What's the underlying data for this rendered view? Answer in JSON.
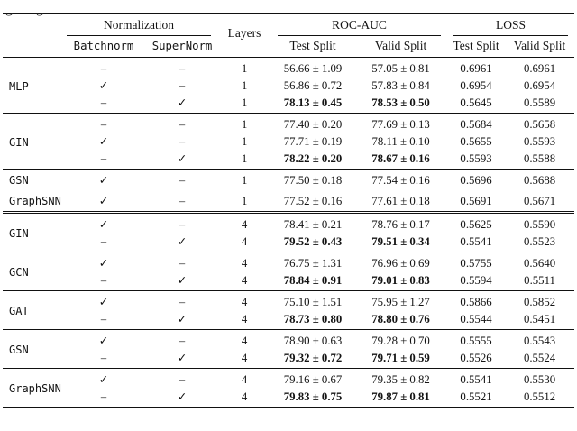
{
  "caption_fragment": "g g",
  "header": {
    "normalization": "Normalization",
    "layers": "Layers",
    "roc_auc": "ROC-AUC",
    "loss": "LOSS",
    "sub": {
      "batchnorm": "Batchnorm",
      "supernorm": "SuperNorm",
      "roc_test": "Test Split",
      "roc_valid": "Valid Split",
      "loss_test": "Test Split",
      "loss_valid": "Valid Split"
    }
  },
  "symbols": {
    "check": "✓",
    "dash": "–"
  },
  "groups": [
    {
      "model": "MLP",
      "separator_after": "single",
      "rows": [
        {
          "batchnorm": "–",
          "supernorm": "–",
          "layers": "1",
          "roc_test": "56.66 ± 1.09",
          "roc_valid": "57.05 ± 0.81",
          "loss_test": "0.6961",
          "loss_valid": "0.6961",
          "bold_roc": false
        },
        {
          "batchnorm": "✓",
          "supernorm": "–",
          "layers": "1",
          "roc_test": "56.86 ± 0.72",
          "roc_valid": "57.83 ± 0.84",
          "loss_test": "0.6954",
          "loss_valid": "0.6954",
          "bold_roc": false
        },
        {
          "batchnorm": "–",
          "supernorm": "✓",
          "layers": "1",
          "roc_test": "78.13 ± 0.45",
          "roc_valid": "78.53 ± 0.50",
          "loss_test": "0.5645",
          "loss_valid": "0.5589",
          "bold_roc": true
        }
      ]
    },
    {
      "model": "GIN",
      "separator_after": "single",
      "rows": [
        {
          "batchnorm": "–",
          "supernorm": "–",
          "layers": "1",
          "roc_test": "77.40 ± 0.20",
          "roc_valid": "77.69 ± 0.13",
          "loss_test": "0.5684",
          "loss_valid": "0.5658",
          "bold_roc": false
        },
        {
          "batchnorm": "✓",
          "supernorm": "–",
          "layers": "1",
          "roc_test": "77.71 ± 0.19",
          "roc_valid": "78.11 ± 0.10",
          "loss_test": "0.5655",
          "loss_valid": "0.5593",
          "bold_roc": false
        },
        {
          "batchnorm": "–",
          "supernorm": "✓",
          "layers": "1",
          "roc_test": "78.22 ± 0.20",
          "roc_valid": "78.67 ± 0.16",
          "loss_test": "0.5593",
          "loss_valid": "0.5588",
          "bold_roc": true
        }
      ]
    },
    {
      "model": "GSN",
      "separator_after": "none",
      "rows": [
        {
          "batchnorm": "✓",
          "supernorm": "–",
          "layers": "1",
          "roc_test": "77.50 ± 0.18",
          "roc_valid": "77.54 ± 0.16",
          "loss_test": "0.5696",
          "loss_valid": "0.5688",
          "bold_roc": false
        }
      ]
    },
    {
      "model": "GraphSNN",
      "separator_after": "double",
      "rows": [
        {
          "batchnorm": "✓",
          "supernorm": "–",
          "layers": "1",
          "roc_test": "77.52 ± 0.16",
          "roc_valid": "77.61 ± 0.18",
          "loss_test": "0.5691",
          "loss_valid": "0.5671",
          "bold_roc": false
        }
      ]
    },
    {
      "model": "GIN",
      "separator_after": "single",
      "rows": [
        {
          "batchnorm": "✓",
          "supernorm": "–",
          "layers": "4",
          "roc_test": "78.41 ± 0.21",
          "roc_valid": "78.76 ± 0.17",
          "loss_test": "0.5625",
          "loss_valid": "0.5590",
          "bold_roc": false
        },
        {
          "batchnorm": "–",
          "supernorm": "✓",
          "layers": "4",
          "roc_test": "79.52 ± 0.43",
          "roc_valid": "79.51 ± 0.34",
          "loss_test": "0.5541",
          "loss_valid": "0.5523",
          "bold_roc": true
        }
      ]
    },
    {
      "model": "GCN",
      "separator_after": "single",
      "rows": [
        {
          "batchnorm": "✓",
          "supernorm": "–",
          "layers": "4",
          "roc_test": "76.75 ± 1.31",
          "roc_valid": "76.96 ± 0.69",
          "loss_test": "0.5755",
          "loss_valid": "0.5640",
          "bold_roc": false
        },
        {
          "batchnorm": "–",
          "supernorm": "✓",
          "layers": "4",
          "roc_test": "78.84 ± 0.91",
          "roc_valid": "79.01 ± 0.83",
          "loss_test": "0.5594",
          "loss_valid": "0.5511",
          "bold_roc": true
        }
      ]
    },
    {
      "model": "GAT",
      "separator_after": "single",
      "rows": [
        {
          "batchnorm": "✓",
          "supernorm": "–",
          "layers": "4",
          "roc_test": "75.10 ± 1.51",
          "roc_valid": "75.95 ± 1.27",
          "loss_test": "0.5866",
          "loss_valid": "0.5852",
          "bold_roc": false
        },
        {
          "batchnorm": "–",
          "supernorm": "✓",
          "layers": "4",
          "roc_test": "78.73 ± 0.80",
          "roc_valid": "78.80 ± 0.76",
          "loss_test": "0.5544",
          "loss_valid": "0.5451",
          "bold_roc": true
        }
      ]
    },
    {
      "model": "GSN",
      "separator_after": "single",
      "rows": [
        {
          "batchnorm": "✓",
          "supernorm": "–",
          "layers": "4",
          "roc_test": "78.90 ± 0.63",
          "roc_valid": "79.28 ± 0.70",
          "loss_test": "0.5555",
          "loss_valid": "0.5543",
          "bold_roc": false
        },
        {
          "batchnorm": "–",
          "supernorm": "✓",
          "layers": "4",
          "roc_test": "79.32 ± 0.72",
          "roc_valid": "79.71 ± 0.59",
          "loss_test": "0.5526",
          "loss_valid": "0.5524",
          "bold_roc": true
        }
      ]
    },
    {
      "model": "GraphSNN",
      "separator_after": "none",
      "rows": [
        {
          "batchnorm": "✓",
          "supernorm": "–",
          "layers": "4",
          "roc_test": "79.16 ± 0.67",
          "roc_valid": "79.35 ± 0.82",
          "loss_test": "0.5541",
          "loss_valid": "0.5530",
          "bold_roc": false
        },
        {
          "batchnorm": "–",
          "supernorm": "✓",
          "layers": "4",
          "roc_test": "79.83 ± 0.75",
          "roc_valid": "79.87 ± 0.81",
          "loss_test": "0.5521",
          "loss_valid": "0.5512",
          "bold_roc": true
        }
      ]
    }
  ]
}
